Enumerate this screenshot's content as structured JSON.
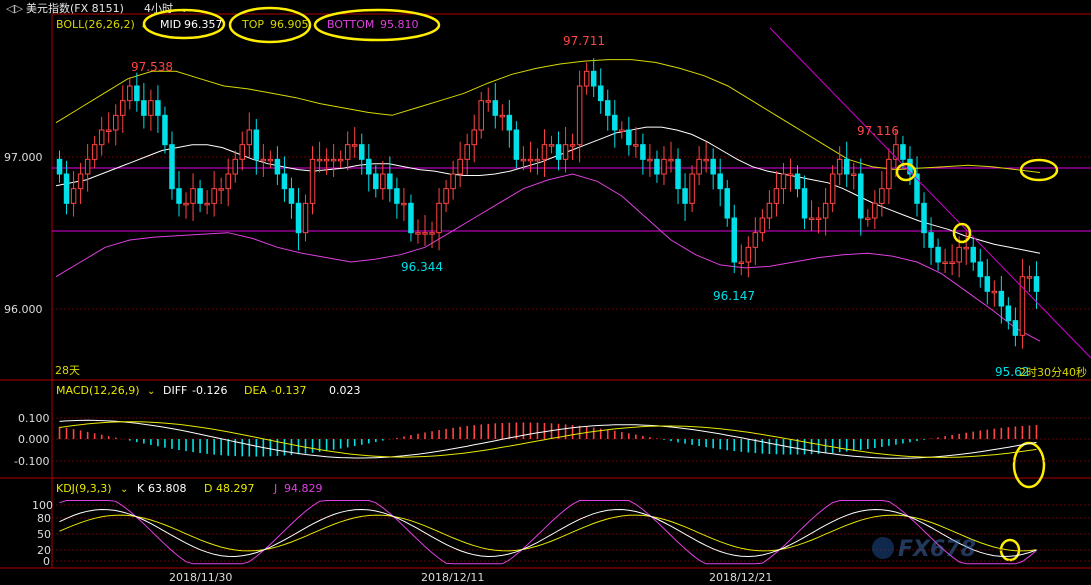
{
  "window": {
    "title": "美元指数(FX 8151)",
    "period": "4小时",
    "nav_arrows": "◁▷"
  },
  "boll": {
    "label": "BOLL(26,26,2)",
    "mid_label": "MID",
    "mid": "96.357",
    "top_label": "TOP",
    "top": "96.905",
    "bottom_label": "BOTTOM",
    "bottom": "95.810"
  },
  "price_axis": {
    "labels": [
      "97.000",
      "96.000"
    ]
  },
  "annotations": {
    "high1": "97.538",
    "high2": "97.711",
    "high3": "97.116",
    "low1": "96.344",
    "low2": "96.147",
    "low3": "95.62"
  },
  "footer_text": {
    "days": "28天",
    "countdown": "2时30分40秒"
  },
  "macd": {
    "label": "MACD(12,26,9)",
    "diff_label": "DIFF",
    "diff": "-0.126",
    "dea_label": "DEA",
    "dea": "-0.137",
    "macd_value": "0.023",
    "axis": [
      "0.100",
      "0.000",
      "-0.100"
    ]
  },
  "kdj": {
    "label": "KDJ(9,3,3)",
    "k_label": "K",
    "k": "63.808",
    "d_label": "D",
    "d": "48.297",
    "j_label": "J",
    "j": "94.829",
    "axis": [
      "100",
      "80",
      "50",
      "20",
      "0"
    ]
  },
  "dates": [
    "2018/11/30",
    "2018/12/11",
    "2018/12/21"
  ],
  "watermark": "FX678",
  "colors": {
    "up": "#ff4444",
    "down": "#00e0e8",
    "mid": "#ffffff",
    "top": "#d8d800",
    "bottom": "#e040e0",
    "hline": "#e000e0",
    "trend": "#d000d0",
    "highlight": "#ffee00",
    "axis_red": "#c00000",
    "grid": "#7a0000",
    "diff": "#ffffff",
    "dea": "#e8e800",
    "k": "#ffffff",
    "d": "#e8e800",
    "j": "#e040e0"
  },
  "chart_data": {
    "type": "candlestick",
    "title": "美元指数(FX 8151) 4小时",
    "x_tick_labels": [
      "2018/11/30",
      "2018/12/11",
      "2018/12/21"
    ],
    "y_range": [
      95.55,
      97.95
    ],
    "y_ticks": [
      97.0,
      96.0
    ],
    "horizontal_lines": [
      96.93,
      96.52
    ],
    "trendline": {
      "from": [
        88,
        97.82
      ],
      "to": [
        138,
        95.6
      ]
    },
    "bars": {
      "close": [
        96.9,
        96.7,
        96.8,
        96.9,
        97.0,
        97.1,
        97.2,
        97.2,
        97.3,
        97.4,
        97.5,
        97.4,
        97.3,
        97.4,
        97.3,
        97.1,
        96.8,
        96.7,
        96.7,
        96.8,
        96.7,
        96.7,
        96.8,
        96.8,
        96.9,
        97.0,
        97.1,
        97.2,
        97.0,
        97.0,
        97.0,
        96.9,
        96.8,
        96.7,
        96.5,
        96.7,
        97.0,
        97.0,
        97.0,
        97.0,
        97.0,
        97.1,
        97.1,
        97.0,
        96.9,
        96.8,
        96.9,
        96.8,
        96.7,
        96.7,
        96.5,
        96.5,
        96.5,
        96.5,
        96.7,
        96.8,
        96.9,
        97.0,
        97.1,
        97.2,
        97.4,
        97.4,
        97.3,
        97.3,
        97.2,
        97.0,
        97.0,
        97.0,
        97.0,
        97.1,
        97.1,
        97.0,
        97.1,
        97.1,
        97.5,
        97.6,
        97.5,
        97.4,
        97.3,
        97.2,
        97.2,
        97.1,
        97.1,
        97.0,
        97.0,
        96.9,
        97.0,
        97.0,
        96.8,
        96.7,
        96.9,
        97.0,
        97.0,
        96.9,
        96.8,
        96.6,
        96.3,
        96.3,
        96.4,
        96.5,
        96.6,
        96.7,
        96.8,
        96.9,
        96.9,
        96.8,
        96.6,
        96.6,
        96.6,
        96.7,
        96.9,
        97.0,
        96.9,
        96.9,
        96.6,
        96.6,
        96.7,
        96.8,
        97.0,
        97.1,
        97.0,
        96.9,
        96.7,
        96.5,
        96.4,
        96.3,
        96.3,
        96.3,
        96.4,
        96.4,
        96.3,
        96.2,
        96.1,
        96.1,
        96.0,
        95.9,
        95.8,
        96.2,
        96.2,
        96.1
      ],
      "open": [
        97.0,
        96.9,
        96.7,
        96.8,
        96.9,
        97.0,
        97.1,
        97.2,
        97.2,
        97.3,
        97.4,
        97.5,
        97.4,
        97.3,
        97.4,
        97.3,
        97.1,
        96.8,
        96.7,
        96.7,
        96.8,
        96.7,
        96.7,
        96.8,
        96.8,
        96.9,
        97.0,
        97.1,
        97.2,
        97.0,
        97.0,
        97.0,
        96.9,
        96.8,
        96.7,
        96.5,
        96.7,
        97.0,
        97.0,
        97.0,
        97.0,
        97.0,
        97.1,
        97.1,
        97.0,
        96.9,
        96.8,
        96.9,
        96.8,
        96.7,
        96.7,
        96.5,
        96.5,
        96.5,
        96.5,
        96.7,
        96.8,
        96.9,
        97.0,
        97.1,
        97.2,
        97.4,
        97.4,
        97.3,
        97.3,
        97.2,
        97.0,
        97.0,
        97.0,
        97.0,
        97.1,
        97.1,
        97.0,
        97.1,
        97.1,
        97.5,
        97.6,
        97.5,
        97.4,
        97.3,
        97.2,
        97.2,
        97.1,
        97.1,
        97.0,
        97.0,
        96.9,
        97.0,
        97.0,
        96.8,
        96.7,
        96.9,
        97.0,
        97.0,
        96.9,
        96.8,
        96.6,
        96.3,
        96.3,
        96.4,
        96.5,
        96.6,
        96.7,
        96.8,
        96.9,
        96.9,
        96.8,
        96.6,
        96.6,
        96.6,
        96.7,
        96.9,
        97.0,
        96.9,
        96.9,
        96.6,
        96.6,
        96.7,
        96.8,
        97.0,
        97.1,
        97.0,
        96.9,
        96.7,
        96.5,
        96.4,
        96.3,
        96.3,
        96.3,
        96.4,
        96.4,
        96.3,
        96.2,
        96.1,
        96.1,
        96.0,
        95.9,
        95.8,
        96.2,
        96.2
      ]
    },
    "series": [
      {
        "name": "MID",
        "values": [
          96.82,
          96.84,
          96.86,
          96.9,
          96.94,
          96.98,
          97.02,
          97.06,
          97.08,
          97.1,
          97.1,
          97.08,
          97.04,
          97.0,
          96.97,
          96.95,
          96.93,
          96.92,
          96.93,
          96.94,
          96.96,
          96.97,
          96.97,
          96.95,
          96.93,
          96.92,
          96.9,
          96.89,
          96.89,
          96.9,
          96.92,
          96.95,
          96.98,
          97.02,
          97.06,
          97.1,
          97.14,
          97.18,
          97.2,
          97.22,
          97.22,
          97.2,
          97.17,
          97.12,
          97.06,
          97.0,
          96.95,
          96.92,
          96.9,
          96.88,
          96.86,
          96.84,
          96.8,
          96.75,
          96.7,
          96.66,
          96.62,
          96.58,
          96.55,
          96.52,
          96.48,
          96.45,
          96.42,
          96.4,
          96.38,
          96.36
        ]
      },
      {
        "name": "TOP",
        "values": [
          97.25,
          97.35,
          97.45,
          97.55,
          97.6,
          97.6,
          97.55,
          97.5,
          97.48,
          97.45,
          97.42,
          97.38,
          97.35,
          97.32,
          97.3,
          97.35,
          97.4,
          97.45,
          97.52,
          97.58,
          97.62,
          97.65,
          97.67,
          97.68,
          97.68,
          97.66,
          97.62,
          97.57,
          97.5,
          97.4,
          97.3,
          97.2,
          97.1,
          97.0,
          96.95,
          96.93,
          96.94,
          96.95,
          96.96,
          96.95,
          96.93,
          96.91
        ]
      },
      {
        "name": "BOTTOM",
        "values": [
          96.2,
          96.3,
          96.4,
          96.45,
          96.47,
          96.48,
          96.49,
          96.5,
          96.46,
          96.4,
          96.36,
          96.33,
          96.3,
          96.32,
          96.35,
          96.4,
          96.5,
          96.6,
          96.7,
          96.8,
          96.86,
          96.9,
          96.85,
          96.75,
          96.6,
          96.45,
          96.35,
          96.28,
          96.26,
          96.27,
          96.3,
          96.33,
          96.35,
          96.36,
          96.34,
          96.3,
          96.22,
          96.1,
          95.98,
          95.85,
          95.76
        ]
      }
    ]
  }
}
